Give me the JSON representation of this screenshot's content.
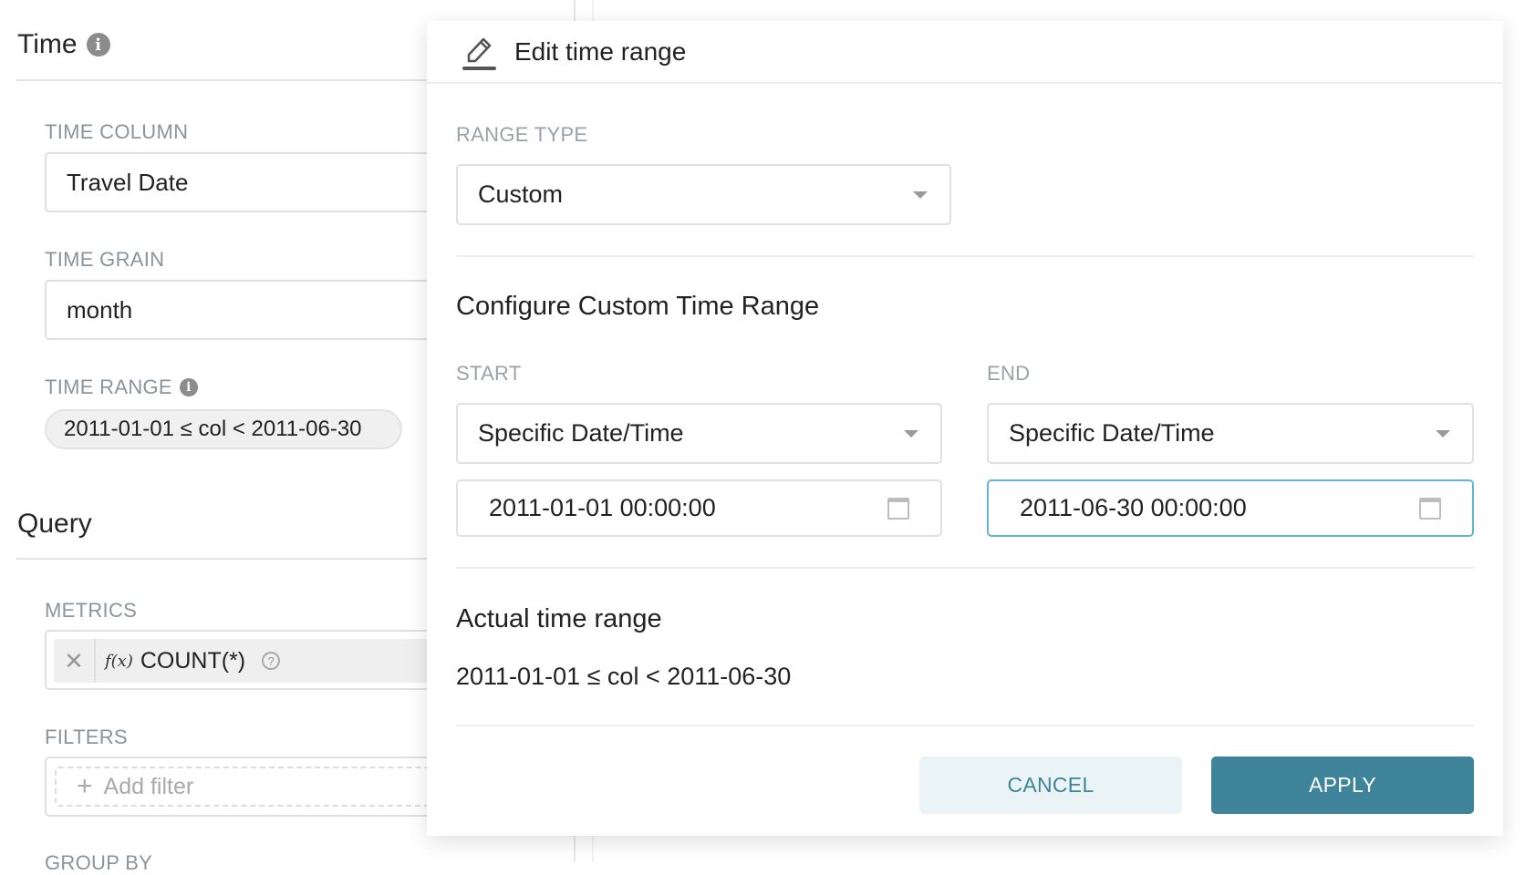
{
  "left": {
    "time_title": "Time",
    "time_column": {
      "label": "TIME COLUMN",
      "value": "Travel Date"
    },
    "time_grain": {
      "label": "TIME GRAIN",
      "value": "month"
    },
    "time_range": {
      "label": "TIME RANGE",
      "value": "2011-01-01 ≤ col < 2011-06-30"
    },
    "query_title": "Query",
    "metrics": {
      "label": "METRICS",
      "fx": "f(x)",
      "value": "COUNT(*)"
    },
    "filters": {
      "label": "FILTERS",
      "placeholder": "Add filter"
    },
    "group_by_label": "GROUP BY"
  },
  "popup": {
    "title": "Edit time range",
    "range_type": {
      "label": "RANGE TYPE",
      "value": "Custom"
    },
    "configure_title": "Configure Custom Time Range",
    "start": {
      "label": "START",
      "mode": "Specific Date/Time",
      "value": "2011-01-01 00:00:00"
    },
    "end": {
      "label": "END",
      "mode": "Specific Date/Time",
      "value": "2011-06-30 00:00:00"
    },
    "actual_title": "Actual time range",
    "actual_value": "2011-01-01 ≤ col < 2011-06-30",
    "cancel": "CANCEL",
    "apply": "APPLY"
  },
  "colors": {
    "primary": "#3f849b",
    "cancel_bg": "#eaf4f7",
    "focus_border": "#62b5d3"
  }
}
